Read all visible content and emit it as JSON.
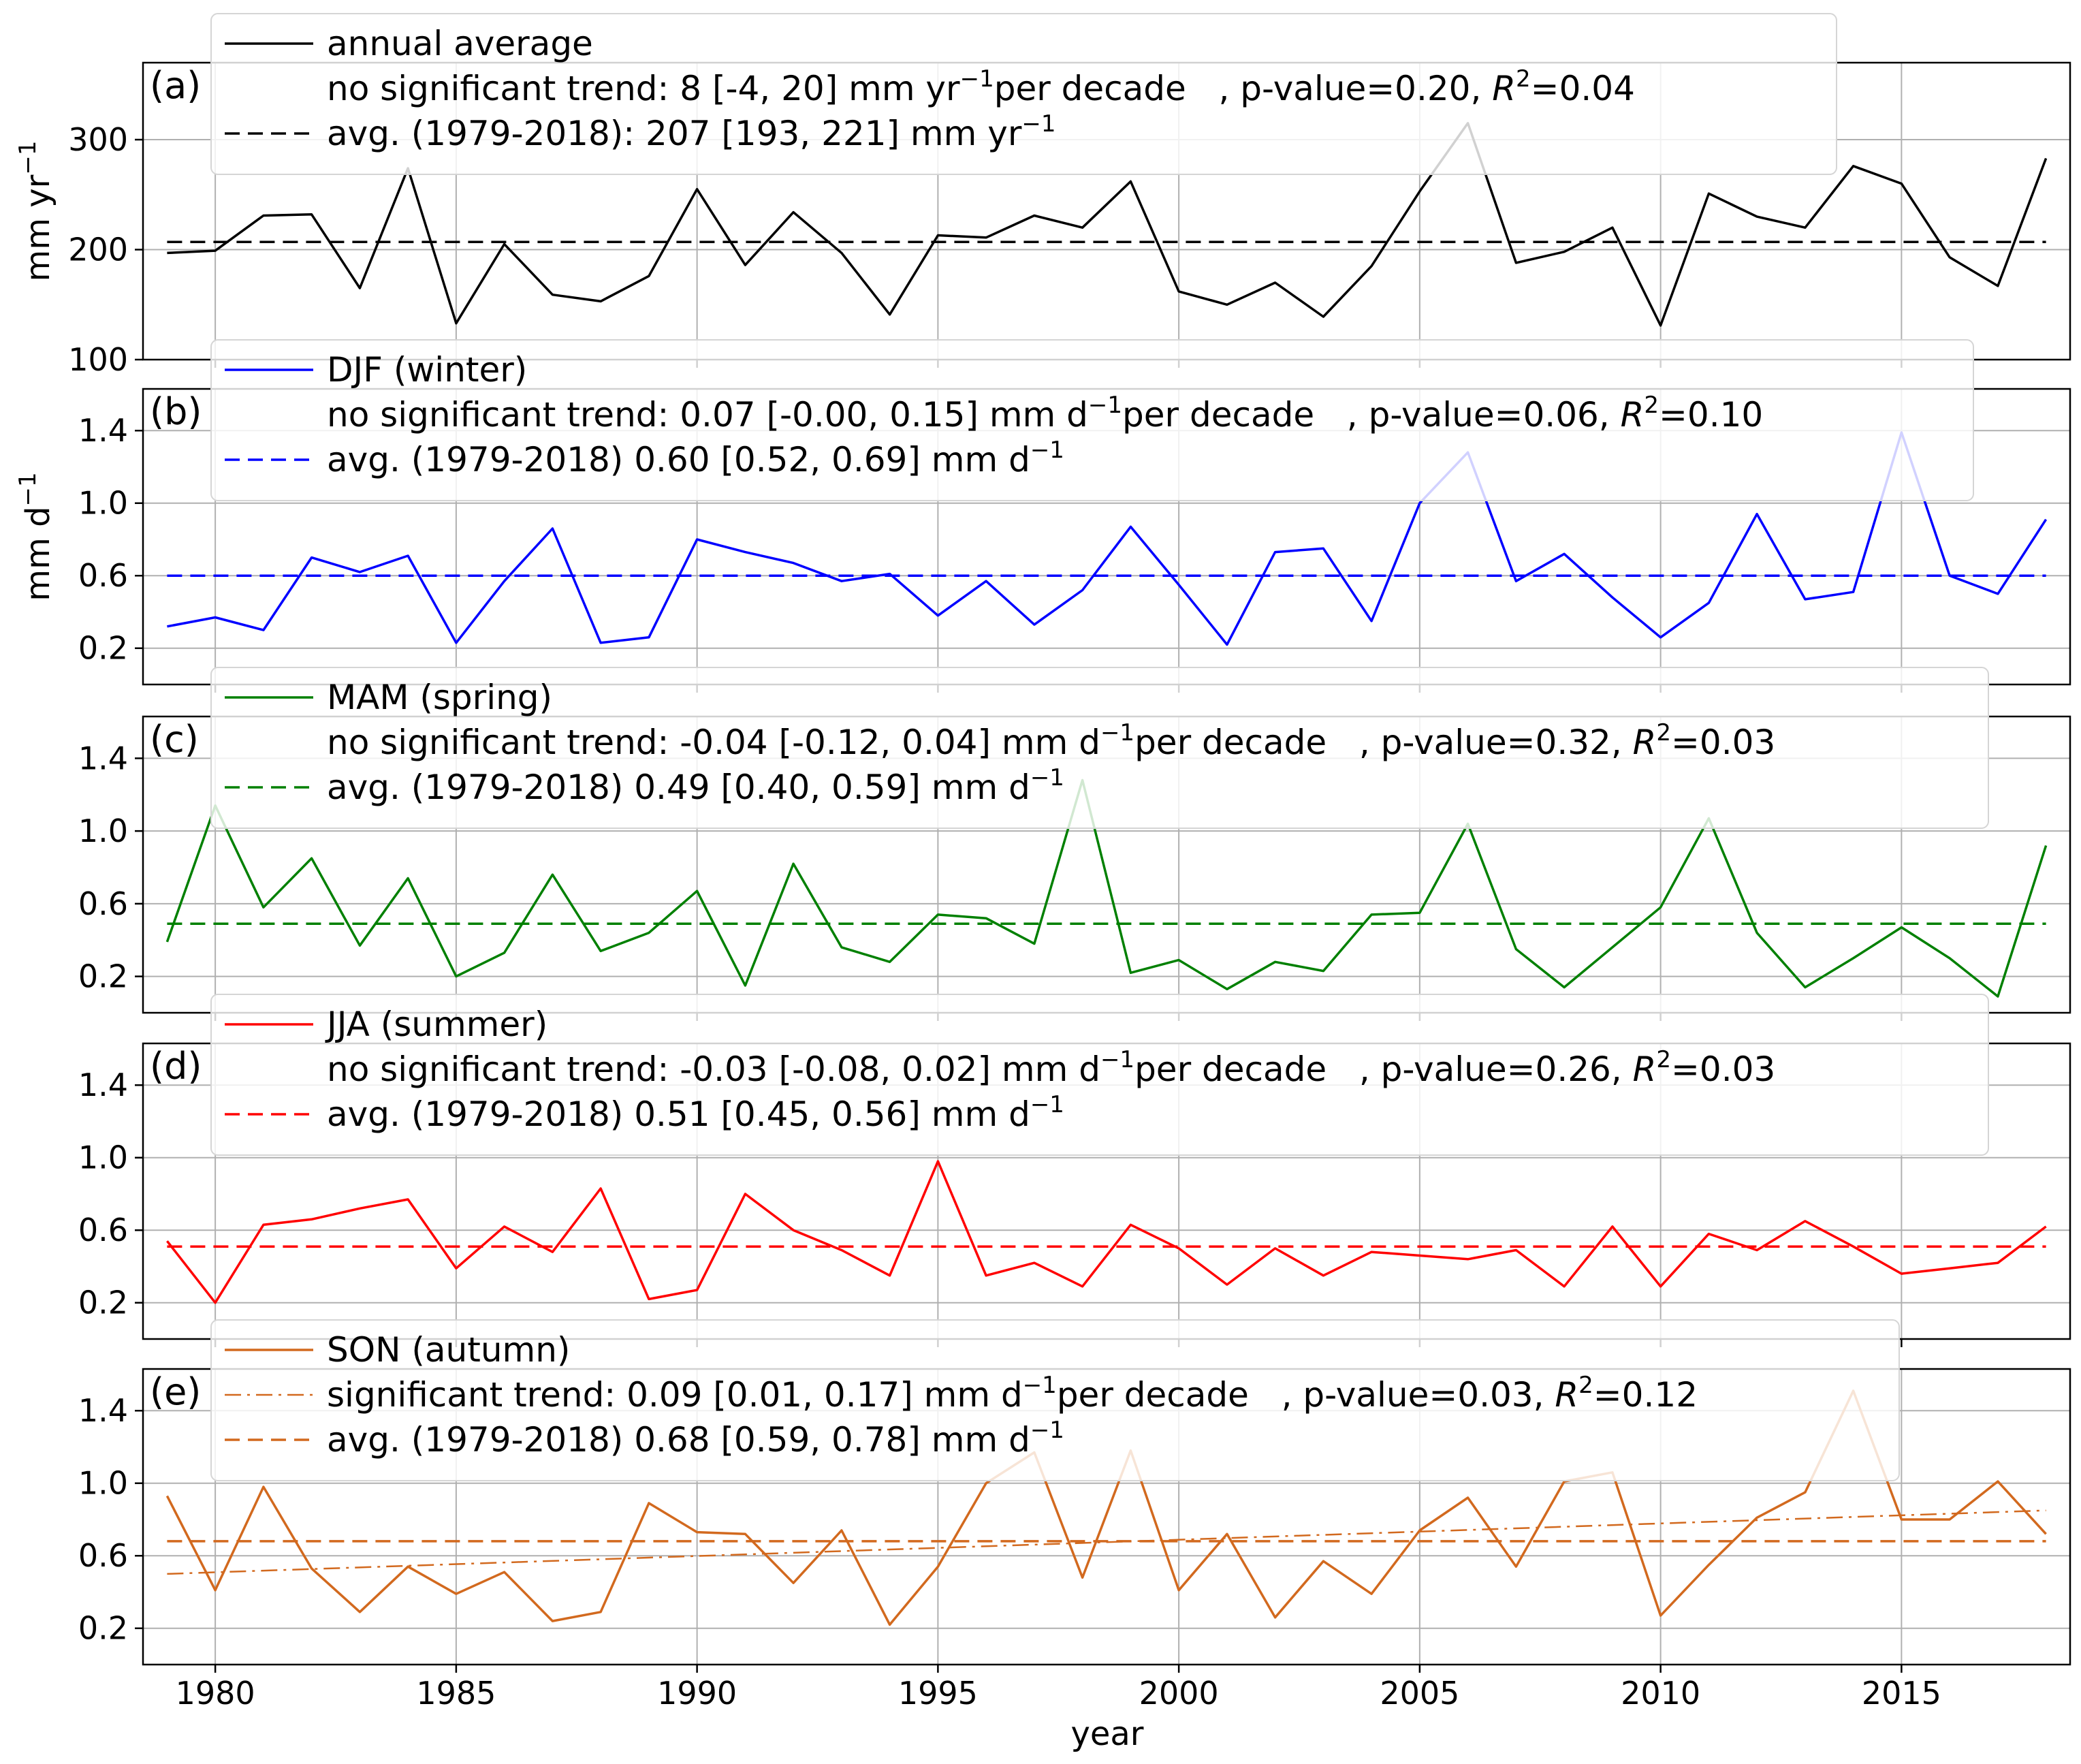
{
  "chart_data": {
    "type": "line",
    "xlabel": "year",
    "x": [
      1979,
      1980,
      1981,
      1982,
      1983,
      1984,
      1985,
      1986,
      1987,
      1988,
      1989,
      1990,
      1991,
      1992,
      1993,
      1994,
      1995,
      1996,
      1997,
      1998,
      1999,
      2000,
      2001,
      2002,
      2003,
      2004,
      2005,
      2006,
      2007,
      2008,
      2009,
      2010,
      2011,
      2012,
      2013,
      2014,
      2015,
      2016,
      2017,
      2018
    ],
    "xticks": [
      1980,
      1985,
      1990,
      1995,
      2000,
      2005,
      2010,
      2015
    ],
    "xlim": [
      1978.5,
      2018.5
    ],
    "grid": true,
    "panels": [
      {
        "label": "(a)",
        "ylabel": "mm yr",
        "ylabel_sup": "−1",
        "ylim": [
          100,
          370
        ],
        "yticks": [
          100,
          200,
          300
        ],
        "yticks_fmt": "0",
        "color": "#000000",
        "series": [
          {
            "name": "annual average",
            "style": "solid",
            "values": [
              197,
              199,
              231,
              232,
              165,
              274,
              133,
              205,
              159,
              153,
              176,
              255,
              186,
              234,
              197,
              141,
              213,
              211,
              231,
              220,
              262,
              162,
              150,
              170,
              139,
              185,
              253,
              315,
              188,
              198,
              220,
              131,
              251,
              230,
              220,
              276,
              260,
              193,
              167,
              283
            ]
          },
          {
            "name": "avg. (1979-2018): 207 [193, 221] mm yr",
            "name_sup": "−1",
            "style": "dashed",
            "values": [
              207,
              207
            ]
          }
        ],
        "legend": {
          "entries": [
            {
              "style": "solid",
              "parts": [
                {
                  "t": "annual average"
                }
              ]
            },
            {
              "style": "none",
              "parts": [
                {
                  "t": "no significant trend: 8 [-4, 20] mm yr"
                },
                {
                  "t": "−1",
                  "sup": true
                },
                {
                  "t": "per decade   , p-value=0.20, "
                },
                {
                  "t": "R",
                  "it": true
                },
                {
                  "t": "2",
                  "sup": true
                },
                {
                  "t": "=0.04"
                }
              ]
            },
            {
              "style": "dashed",
              "parts": [
                {
                  "t": "avg. (1979-2018): 207 [193, 221] mm yr"
                },
                {
                  "t": "−1",
                  "sup": true
                }
              ]
            }
          ]
        }
      },
      {
        "label": "(b)",
        "ylabel": "mm d",
        "ylabel_sup": "−1",
        "ylim": [
          0.0,
          1.63
        ],
        "yticks": [
          0.2,
          0.6,
          1.0,
          1.4
        ],
        "yticks_fmt": "1",
        "color": "#0000ff",
        "series": [
          {
            "name": "DJF (winter)",
            "style": "solid",
            "values": [
              0.32,
              0.37,
              0.3,
              0.7,
              0.62,
              0.71,
              0.23,
              0.57,
              0.86,
              0.23,
              0.26,
              0.8,
              0.73,
              0.67,
              0.57,
              0.61,
              0.38,
              0.57,
              0.33,
              0.52,
              0.87,
              0.55,
              0.22,
              0.73,
              0.75,
              0.35,
              1.0,
              1.28,
              0.57,
              0.72,
              0.48,
              0.26,
              0.45,
              0.94,
              0.47,
              0.51,
              1.39,
              0.6,
              0.5,
              0.91
            ]
          },
          {
            "name": "avg. (1979-2018) 0.60 [0.52, 0.69] mm d",
            "name_sup": "−1",
            "style": "dashed",
            "values": [
              0.6,
              0.6
            ]
          }
        ],
        "legend": {
          "entries": [
            {
              "style": "solid",
              "parts": [
                {
                  "t": "DJF (winter)"
                }
              ]
            },
            {
              "style": "none",
              "parts": [
                {
                  "t": "no significant trend: 0.07 [-0.00, 0.15] mm d"
                },
                {
                  "t": "−1",
                  "sup": true
                },
                {
                  "t": "per decade   , p-value=0.06, "
                },
                {
                  "t": "R",
                  "it": true
                },
                {
                  "t": "2",
                  "sup": true
                },
                {
                  "t": "=0.10"
                }
              ]
            },
            {
              "style": "dashed",
              "parts": [
                {
                  "t": "avg. (1979-2018) 0.60 [0.52, 0.69] mm d"
                },
                {
                  "t": "−1",
                  "sup": true
                }
              ]
            }
          ]
        }
      },
      {
        "label": "(c)",
        "ylabel": "",
        "ylabel_sup": "",
        "ylim": [
          0.0,
          1.63
        ],
        "yticks": [
          0.2,
          0.6,
          1.0,
          1.4
        ],
        "yticks_fmt": "1",
        "color": "#008000",
        "series": [
          {
            "name": "MAM (spring)",
            "style": "solid",
            "values": [
              0.39,
              1.14,
              0.58,
              0.85,
              0.37,
              0.74,
              0.2,
              0.33,
              0.76,
              0.34,
              0.44,
              0.67,
              0.15,
              0.82,
              0.36,
              0.28,
              0.54,
              0.52,
              0.38,
              1.28,
              0.22,
              0.29,
              0.13,
              0.28,
              0.23,
              0.54,
              0.55,
              1.04,
              0.35,
              0.14,
              0.36,
              0.58,
              1.07,
              0.44,
              0.14,
              0.3,
              0.47,
              0.3,
              0.09,
              0.92
            ]
          },
          {
            "name": "avg. (1979-2018) 0.49 [0.40, 0.59] mm d",
            "name_sup": "−1",
            "style": "dashed",
            "values": [
              0.49,
              0.49
            ]
          }
        ],
        "legend": {
          "entries": [
            {
              "style": "solid",
              "parts": [
                {
                  "t": "MAM (spring)"
                }
              ]
            },
            {
              "style": "none",
              "parts": [
                {
                  "t": "no significant trend: -0.04 [-0.12, 0.04] mm d"
                },
                {
                  "t": "−1",
                  "sup": true
                },
                {
                  "t": "per decade   , p-value=0.32, "
                },
                {
                  "t": "R",
                  "it": true
                },
                {
                  "t": "2",
                  "sup": true
                },
                {
                  "t": "=0.03"
                }
              ]
            },
            {
              "style": "dashed",
              "parts": [
                {
                  "t": "avg. (1979-2018) 0.49 [0.40, 0.59] mm d"
                },
                {
                  "t": "−1",
                  "sup": true
                }
              ]
            }
          ]
        }
      },
      {
        "label": "(d)",
        "ylabel": "",
        "ylabel_sup": "",
        "ylim": [
          0.0,
          1.63
        ],
        "yticks": [
          0.2,
          0.6,
          1.0,
          1.4
        ],
        "yticks_fmt": "1",
        "color": "#ff0000",
        "series": [
          {
            "name": "JJA (summer)",
            "style": "solid",
            "values": [
              0.54,
              0.2,
              0.63,
              0.66,
              0.72,
              0.77,
              0.39,
              0.62,
              0.48,
              0.83,
              0.22,
              0.27,
              0.8,
              0.6,
              0.49,
              0.35,
              0.98,
              0.35,
              0.42,
              0.29,
              0.63,
              0.5,
              0.3,
              0.5,
              0.35,
              0.48,
              0.46,
              0.44,
              0.49,
              0.29,
              0.62,
              0.29,
              0.58,
              0.49,
              0.65,
              0.51,
              0.36,
              0.39,
              0.42,
              0.62
            ]
          },
          {
            "name": "avg. (1979-2018) 0.51 [0.45, 0.56] mm d",
            "name_sup": "−1",
            "style": "dashed",
            "values": [
              0.51,
              0.51
            ]
          }
        ],
        "legend": {
          "entries": [
            {
              "style": "solid",
              "parts": [
                {
                  "t": "JJA (summer)"
                }
              ]
            },
            {
              "style": "none",
              "parts": [
                {
                  "t": "no significant trend: -0.03 [-0.08, 0.02] mm d"
                },
                {
                  "t": "−1",
                  "sup": true
                },
                {
                  "t": "per decade   , p-value=0.26, "
                },
                {
                  "t": "R",
                  "it": true
                },
                {
                  "t": "2",
                  "sup": true
                },
                {
                  "t": "=0.03"
                }
              ]
            },
            {
              "style": "dashed",
              "parts": [
                {
                  "t": "avg. (1979-2018) 0.51 [0.45, 0.56] mm d"
                },
                {
                  "t": "−1",
                  "sup": true
                }
              ]
            }
          ]
        }
      },
      {
        "label": "(e)",
        "ylabel": "",
        "ylabel_sup": "",
        "ylim": [
          0.0,
          1.63
        ],
        "yticks": [
          0.2,
          0.6,
          1.0,
          1.4
        ],
        "yticks_fmt": "1",
        "color": "#d2691e",
        "series": [
          {
            "name": "SON (autumn)",
            "style": "solid",
            "values": [
              0.93,
              0.41,
              0.98,
              0.53,
              0.29,
              0.54,
              0.39,
              0.51,
              0.24,
              0.29,
              0.89,
              0.73,
              0.72,
              0.45,
              0.74,
              0.22,
              0.54,
              1.0,
              1.17,
              0.48,
              1.18,
              0.41,
              0.72,
              0.26,
              0.57,
              0.39,
              0.74,
              0.92,
              0.54,
              1.01,
              1.06,
              0.27,
              0.55,
              0.81,
              0.95,
              1.51,
              0.8,
              0.8,
              1.01,
              0.72
            ]
          },
          {
            "name": "significant trend: 0.09 [0.01, 0.17] mm d",
            "style": "dashdot",
            "values": [
              0.5,
              0.85
            ]
          },
          {
            "name": "avg. (1979-2018) 0.68 [0.59, 0.78] mm d",
            "name_sup": "−1",
            "style": "dashed",
            "values": [
              0.68,
              0.68
            ]
          }
        ],
        "legend": {
          "entries": [
            {
              "style": "solid",
              "parts": [
                {
                  "t": "SON (autumn)"
                }
              ]
            },
            {
              "style": "dashdot",
              "parts": [
                {
                  "t": "significant trend: 0.09 [0.01, 0.17] mm d"
                },
                {
                  "t": "−1",
                  "sup": true
                },
                {
                  "t": "per decade   , p-value=0.03, "
                },
                {
                  "t": "R",
                  "it": true
                },
                {
                  "t": "2",
                  "sup": true
                },
                {
                  "t": "=0.12"
                }
              ]
            },
            {
              "style": "dashed",
              "parts": [
                {
                  "t": "avg. (1979-2018) 0.68 [0.59, 0.78] mm d"
                },
                {
                  "t": "−1",
                  "sup": true
                }
              ]
            }
          ]
        }
      }
    ]
  }
}
